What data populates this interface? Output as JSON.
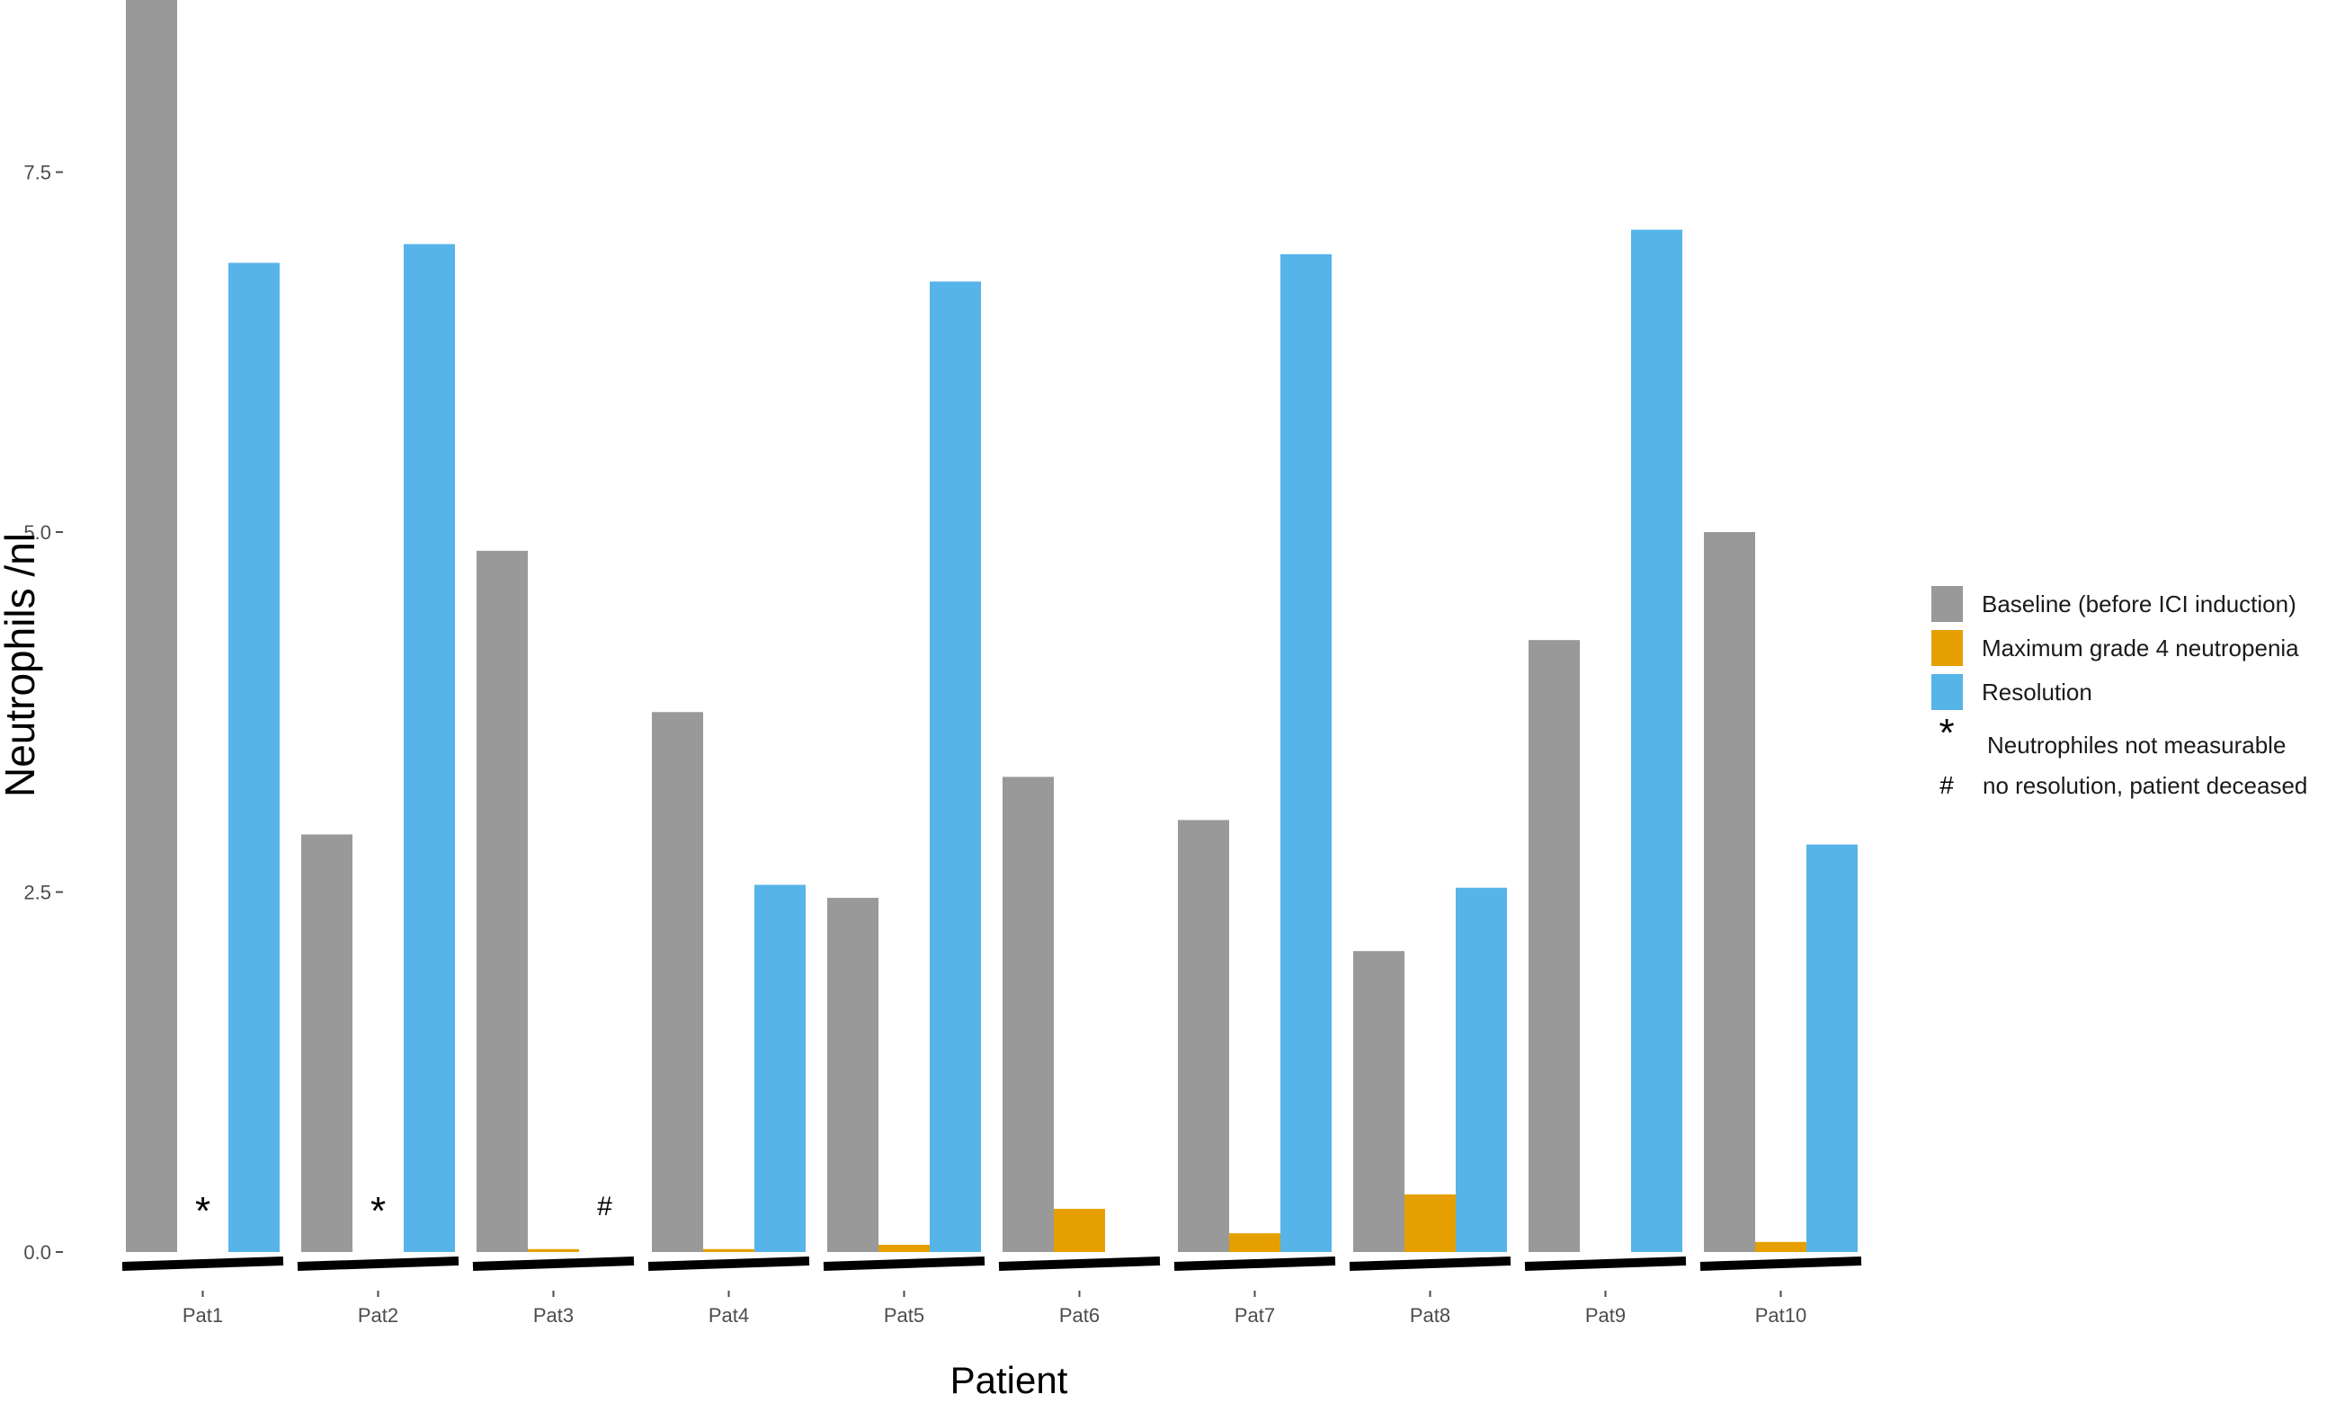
{
  "chart_data": {
    "type": "bar",
    "title": "",
    "xlabel": "Patient",
    "ylabel": "Neutrophils /nl",
    "ylim": [
      0,
      8.7
    ],
    "yticks": [
      0.0,
      2.5,
      5.0,
      7.5
    ],
    "ytick_labels": [
      "0.0",
      "2.5",
      "5.0",
      "7.5"
    ],
    "grid": false,
    "legend_position": "right",
    "categories": [
      "Pat1",
      "Pat2",
      "Pat3",
      "Pat4",
      "Pat5",
      "Pat6",
      "Pat7",
      "Pat8",
      "Pat9",
      "Pat10"
    ],
    "series": [
      {
        "name": "Baseline (before ICI induction)",
        "color": "#999999",
        "values": [
          8.7,
          2.9,
          4.87,
          3.75,
          2.46,
          3.3,
          3.0,
          2.09,
          4.25,
          5.0
        ]
      },
      {
        "name": "Maximum grade 4 neutropenia",
        "color": "#E69F00",
        "values": [
          null,
          null,
          0.02,
          0.02,
          0.05,
          0.3,
          0.13,
          0.4,
          null,
          0.07
        ]
      },
      {
        "name": "Resolution",
        "color": "#56B4E9",
        "values": [
          6.87,
          7.0,
          null,
          2.55,
          6.74,
          null,
          6.93,
          2.53,
          7.1,
          2.83
        ]
      }
    ],
    "annotations": [
      {
        "category": "Pat1",
        "series": "Maximum grade 4 neutropenia",
        "symbol": "*"
      },
      {
        "category": "Pat2",
        "series": "Maximum grade 4 neutropenia",
        "symbol": "*"
      },
      {
        "category": "Pat3",
        "series": "Resolution",
        "symbol": "#"
      }
    ],
    "legend_extra": [
      {
        "symbol": "*",
        "label": "Neutrophiles not measurable"
      },
      {
        "symbol": "#",
        "label": "no resolution, patient deceased"
      }
    ]
  }
}
